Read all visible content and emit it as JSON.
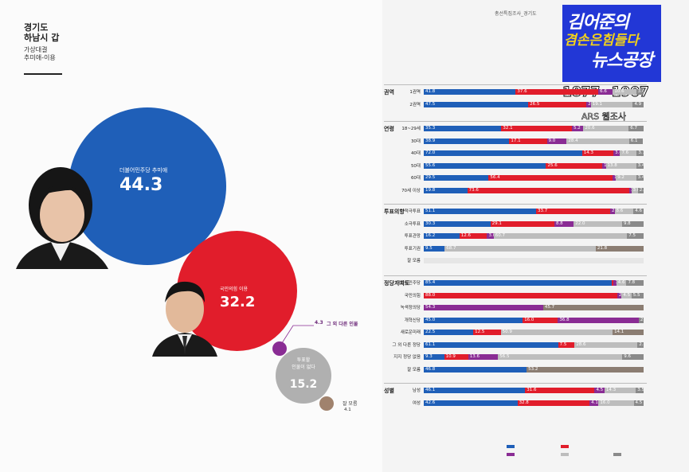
{
  "left": {
    "region_line1": "경기도",
    "region_line2": "하남시 갑",
    "matchup_line1": "가상대결",
    "matchup_line2": "추미애-이용",
    "bubbles": [
      {
        "label": "더불어민주당 추미애",
        "value": "44.3",
        "color": "#1f5fb8"
      },
      {
        "label": "국민의힘 이용",
        "value": "32.2",
        "color": "#e11d2b"
      },
      {
        "label": "그 외 다른 인물",
        "value": "4.3",
        "color": "#8a2c94"
      },
      {
        "label_line1": "투표할",
        "label_line2": "인물이 없다",
        "value": "15.2",
        "color": "#b0b0b0"
      },
      {
        "label": "잘 모름",
        "value": "4.1",
        "color": "#a0826d"
      }
    ]
  },
  "header_text": "총선특집조사_경기도",
  "logo": {
    "line1": "김어준의",
    "line2": "겸손은힘들다",
    "line3": "뉴스공장"
  },
  "overlay": {
    "range": "1877~1907",
    "type": "ARS 웹조사"
  },
  "chart_data": {
    "type": "bar",
    "stacked": true,
    "colors": [
      "#1f5fb8",
      "#e11d2b",
      "#8a2c94",
      "#bdbdbd",
      "#8b7d72",
      "#8a8a8a"
    ],
    "groups": [
      {
        "name": "권역",
        "rows": [
          {
            "label": "1권역",
            "values": [
              41.8,
              37.6,
              6.6,
              10.6,
              0,
              3.4
            ]
          },
          {
            "label": "2권역",
            "values": [
              47.5,
              26.5,
              2.0,
              19.1,
              0,
              4.9
            ]
          }
        ]
      },
      {
        "name": "연령",
        "rows": [
          {
            "label": "18~29세",
            "values": [
              35.3,
              32.1,
              5.2,
              20.6,
              0,
              6.7
            ]
          },
          {
            "label": "30대",
            "values": [
              38.9,
              17.1,
              9.0,
              28.4,
              0,
              6.1
            ]
          },
          {
            "label": "40대",
            "values": [
              72.0,
              14.3,
              3.0,
              7.6,
              0,
              3.1
            ]
          },
          {
            "label": "50대",
            "values": [
              55.6,
              25.6,
              1.6,
              13.8,
              0,
              3.4
            ]
          },
          {
            "label": "60대",
            "values": [
              29.5,
              56.4,
              1.5,
              9.2,
              0,
              3.4
            ]
          },
          {
            "label": "70세 이상",
            "values": [
              19.8,
              73.6,
              1.0,
              3.0,
              0,
              2.6
            ]
          }
        ]
      },
      {
        "name": "투표의향",
        "rows": [
          {
            "label": "적극투표",
            "values": [
              51.1,
              33.7,
              2.0,
              8.6,
              0,
              4.6
            ]
          },
          {
            "label": "소극투표",
            "values": [
              30.3,
              29.1,
              8.8,
              22.0,
              0,
              9.8
            ]
          },
          {
            "label": "투표관망",
            "values": [
              16.2,
              12.6,
              3.0,
              60.7,
              0,
              7.5
            ]
          },
          {
            "label": "투표기권",
            "values": [
              9.5,
              0,
              0,
              68.7,
              21.8,
              0
            ]
          },
          {
            "label": "잘 모름",
            "values": [
              0,
              0,
              0,
              0,
              0,
              0
            ]
          }
        ]
      },
      {
        "name": "정당지지도",
        "rows": [
          {
            "label": "더불어민주당",
            "values": [
              85.4,
              1.0,
              1.2,
              4.6,
              0,
              7.8
            ]
          },
          {
            "label": "국민의힘",
            "values": [
              0,
              88.0,
              2.0,
              4.5,
              0,
              5.5
            ]
          },
          {
            "label": "녹색정의당",
            "values": [
              0,
              0,
              54.3,
              0,
              45.7,
              0
            ]
          },
          {
            "label": "개혁신당",
            "values": [
              45.0,
              16.0,
              36.8,
              0,
              0,
              2.2
            ]
          },
          {
            "label": "새로운미래",
            "values": [
              22.5,
              12.5,
              0,
              50.9,
              14.1,
              0
            ]
          },
          {
            "label": "그 외 다른 정당",
            "values": [
              61.1,
              7.5,
              0,
              28.6,
              0,
              2.8
            ]
          },
          {
            "label": "지지 정당 없음",
            "values": [
              9.3,
              10.9,
              13.6,
              56.5,
              0,
              9.6
            ]
          },
          {
            "label": "잘 모름",
            "values": [
              46.8,
              0,
              0,
              0,
              53.2,
              0
            ]
          }
        ]
      },
      {
        "name": "성별",
        "rows": [
          {
            "label": "남성",
            "values": [
              46.1,
              31.6,
              4.5,
              14.3,
              0,
              3.5
            ]
          },
          {
            "label": "여성",
            "values": [
              42.6,
              32.8,
              4.1,
              16.0,
              0,
              4.5
            ]
          }
        ]
      }
    ]
  }
}
